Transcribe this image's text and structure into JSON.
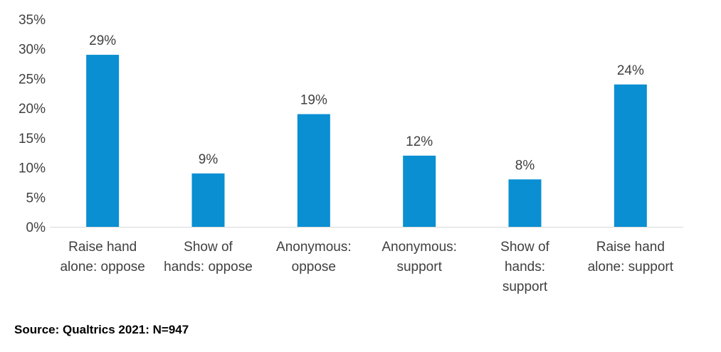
{
  "chart_data": {
    "type": "bar",
    "categories": [
      [
        "Raise hand",
        "alone: oppose"
      ],
      [
        "Show of",
        "hands: oppose"
      ],
      [
        "Anonymous:",
        "oppose"
      ],
      [
        "Anonymous:",
        "support"
      ],
      [
        "Show of",
        "hands:",
        "support"
      ],
      [
        "Raise hand",
        "alone: support"
      ]
    ],
    "values": [
      29,
      9,
      19,
      12,
      8,
      24
    ],
    "data_labels": [
      "29%",
      "9%",
      "19%",
      "12%",
      "8%",
      "24%"
    ],
    "y_ticks": [
      "0%",
      "5%",
      "10%",
      "15%",
      "20%",
      "25%",
      "30%",
      "35%"
    ],
    "ylim": [
      0,
      35
    ],
    "grid": false,
    "bar_color": "#0a8fd2",
    "title": "",
    "xlabel": "",
    "ylabel": ""
  },
  "source": "Source: Qualtrics 2021: N=947"
}
